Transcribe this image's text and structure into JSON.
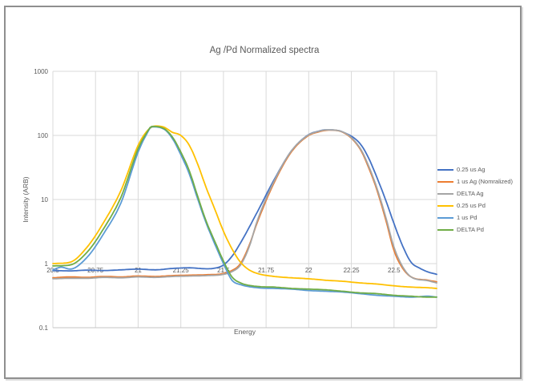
{
  "ui_colors": {
    "text": "#595959",
    "gridline": "#d9d9d9",
    "axis_line": "#c6c6c6",
    "frame_border": "#8f8f8f",
    "frame_shadow": "#dcdcdc",
    "background": "#ffffff"
  },
  "chart_data": {
    "type": "line",
    "title": "Ag /Pd Normalized spectra",
    "xlabel": "Energy",
    "ylabel": "Intensity (ARB)",
    "grid": true,
    "legend_position": "right",
    "x_axis": {
      "min": 20.5,
      "max": 22.75,
      "grid_step": 0.25,
      "tick_labels": [
        "20.5",
        "20.75",
        "21",
        "21.25",
        "21.5",
        "21.75",
        "22",
        "22.25",
        "22.5"
      ],
      "tick_values": [
        20.5,
        20.75,
        21,
        21.25,
        21.5,
        21.75,
        22,
        22.25,
        22.5
      ]
    },
    "y_axis": {
      "scale": "log",
      "min": 0.1,
      "max": 1000,
      "tick_labels": [
        "1000",
        "100",
        "10",
        "1",
        "0.1"
      ],
      "tick_values": [
        1000,
        100,
        10,
        1,
        0.1
      ]
    },
    "series": [
      {
        "name": "0.25 us Ag",
        "color": "#4472C4",
        "points": [
          [
            20.5,
            0.78
          ],
          [
            20.6,
            0.77
          ],
          [
            20.7,
            0.79
          ],
          [
            20.8,
            0.78
          ],
          [
            20.9,
            0.8
          ],
          [
            21.0,
            0.82
          ],
          [
            21.1,
            0.8
          ],
          [
            21.2,
            0.84
          ],
          [
            21.3,
            0.86
          ],
          [
            21.4,
            0.83
          ],
          [
            21.45,
            0.85
          ],
          [
            21.5,
            0.95
          ],
          [
            21.55,
            1.3
          ],
          [
            21.6,
            2.1
          ],
          [
            21.7,
            6.5
          ],
          [
            21.8,
            21
          ],
          [
            21.9,
            58
          ],
          [
            22.0,
            103
          ],
          [
            22.05,
            115
          ],
          [
            22.1,
            122
          ],
          [
            22.15,
            121
          ],
          [
            22.2,
            113
          ],
          [
            22.3,
            75
          ],
          [
            22.35,
            45
          ],
          [
            22.4,
            22
          ],
          [
            22.45,
            10
          ],
          [
            22.5,
            4.2
          ],
          [
            22.55,
            1.9
          ],
          [
            22.6,
            1.05
          ],
          [
            22.65,
            0.85
          ],
          [
            22.7,
            0.74
          ],
          [
            22.75,
            0.68
          ]
        ]
      },
      {
        "name": "1 us Ag (Nomralized)",
        "color": "#ED7D31",
        "points": [
          [
            20.5,
            0.6
          ],
          [
            20.6,
            0.62
          ],
          [
            20.7,
            0.61
          ],
          [
            20.8,
            0.63
          ],
          [
            20.9,
            0.62
          ],
          [
            21.0,
            0.64
          ],
          [
            21.1,
            0.63
          ],
          [
            21.2,
            0.65
          ],
          [
            21.3,
            0.66
          ],
          [
            21.4,
            0.67
          ],
          [
            21.5,
            0.7
          ],
          [
            21.55,
            0.78
          ],
          [
            21.6,
            1.0
          ],
          [
            21.65,
            1.9
          ],
          [
            21.7,
            4.5
          ],
          [
            21.8,
            19
          ],
          [
            21.9,
            56
          ],
          [
            22.0,
            100
          ],
          [
            22.05,
            112
          ],
          [
            22.12,
            121
          ],
          [
            22.2,
            112
          ],
          [
            22.3,
            62
          ],
          [
            22.35,
            32
          ],
          [
            22.4,
            14
          ],
          [
            22.45,
            5
          ],
          [
            22.5,
            1.6
          ],
          [
            22.55,
            0.85
          ],
          [
            22.6,
            0.62
          ],
          [
            22.7,
            0.55
          ],
          [
            22.75,
            0.52
          ]
        ]
      },
      {
        "name": "DELTA Ag",
        "color": "#A5A5A5",
        "points": [
          [
            20.5,
            0.58
          ],
          [
            20.6,
            0.59
          ],
          [
            20.7,
            0.59
          ],
          [
            20.8,
            0.61
          ],
          [
            20.9,
            0.6
          ],
          [
            21.0,
            0.62
          ],
          [
            21.1,
            0.61
          ],
          [
            21.2,
            0.63
          ],
          [
            21.3,
            0.64
          ],
          [
            21.4,
            0.65
          ],
          [
            21.5,
            0.68
          ],
          [
            21.55,
            0.75
          ],
          [
            21.6,
            0.95
          ],
          [
            21.65,
            1.8
          ],
          [
            21.7,
            4.8
          ],
          [
            21.8,
            20
          ],
          [
            21.9,
            58
          ],
          [
            22.0,
            102
          ],
          [
            22.05,
            114
          ],
          [
            22.11,
            122
          ],
          [
            22.2,
            113
          ],
          [
            22.3,
            64
          ],
          [
            22.35,
            34
          ],
          [
            22.4,
            15
          ],
          [
            22.45,
            5.5
          ],
          [
            22.5,
            1.8
          ],
          [
            22.55,
            0.9
          ],
          [
            22.6,
            0.62
          ],
          [
            22.7,
            0.54
          ],
          [
            22.75,
            0.5
          ]
        ]
      },
      {
        "name": "0.25 us Pd",
        "color": "#FFC000",
        "points": [
          [
            20.5,
            1.0
          ],
          [
            20.6,
            1.05
          ],
          [
            20.7,
            1.8
          ],
          [
            20.8,
            4.5
          ],
          [
            20.9,
            14
          ],
          [
            21.0,
            70
          ],
          [
            21.05,
            115
          ],
          [
            21.1,
            140
          ],
          [
            21.15,
            135
          ],
          [
            21.2,
            112
          ],
          [
            21.25,
            100
          ],
          [
            21.3,
            70
          ],
          [
            21.35,
            35
          ],
          [
            21.4,
            15
          ],
          [
            21.45,
            7
          ],
          [
            21.5,
            3.2
          ],
          [
            21.55,
            1.7
          ],
          [
            21.6,
            1.05
          ],
          [
            21.65,
            0.8
          ],
          [
            21.7,
            0.7
          ],
          [
            21.8,
            0.63
          ],
          [
            21.9,
            0.6
          ],
          [
            22.0,
            0.58
          ],
          [
            22.1,
            0.55
          ],
          [
            22.2,
            0.53
          ],
          [
            22.3,
            0.5
          ],
          [
            22.4,
            0.48
          ],
          [
            22.5,
            0.45
          ],
          [
            22.6,
            0.43
          ],
          [
            22.7,
            0.42
          ],
          [
            22.75,
            0.41
          ]
        ]
      },
      {
        "name": "1 us Pd",
        "color": "#5B9BD5",
        "points": [
          [
            20.5,
            0.8
          ],
          [
            20.55,
            0.88
          ],
          [
            20.6,
            0.82
          ],
          [
            20.7,
            1.25
          ],
          [
            20.8,
            3.0
          ],
          [
            20.9,
            9
          ],
          [
            21.0,
            55
          ],
          [
            21.05,
            105
          ],
          [
            21.08,
            136
          ],
          [
            21.15,
            126
          ],
          [
            21.2,
            90
          ],
          [
            21.25,
            50
          ],
          [
            21.3,
            25
          ],
          [
            21.35,
            10
          ],
          [
            21.4,
            4.2
          ],
          [
            21.45,
            2.0
          ],
          [
            21.5,
            1.0
          ],
          [
            21.55,
            0.55
          ],
          [
            21.6,
            0.47
          ],
          [
            21.7,
            0.42
          ],
          [
            21.8,
            0.41
          ],
          [
            21.9,
            0.4
          ],
          [
            22.0,
            0.38
          ],
          [
            22.1,
            0.37
          ],
          [
            22.2,
            0.36
          ],
          [
            22.3,
            0.34
          ],
          [
            22.4,
            0.32
          ],
          [
            22.5,
            0.31
          ],
          [
            22.6,
            0.3
          ],
          [
            22.7,
            0.31
          ],
          [
            22.75,
            0.3
          ]
        ]
      },
      {
        "name": "DELTA Pd",
        "color": "#70AD47",
        "points": [
          [
            20.5,
            0.92
          ],
          [
            20.6,
            0.95
          ],
          [
            20.7,
            1.5
          ],
          [
            20.8,
            3.6
          ],
          [
            20.9,
            11
          ],
          [
            21.0,
            62
          ],
          [
            21.05,
            110
          ],
          [
            21.08,
            138
          ],
          [
            21.15,
            128
          ],
          [
            21.2,
            95
          ],
          [
            21.25,
            55
          ],
          [
            21.3,
            28
          ],
          [
            21.35,
            11
          ],
          [
            21.4,
            4.5
          ],
          [
            21.45,
            2.2
          ],
          [
            21.5,
            1.1
          ],
          [
            21.55,
            0.62
          ],
          [
            21.6,
            0.5
          ],
          [
            21.7,
            0.44
          ],
          [
            21.8,
            0.43
          ],
          [
            21.9,
            0.41
          ],
          [
            22.0,
            0.4
          ],
          [
            22.1,
            0.39
          ],
          [
            22.2,
            0.37
          ],
          [
            22.3,
            0.35
          ],
          [
            22.4,
            0.34
          ],
          [
            22.5,
            0.32
          ],
          [
            22.6,
            0.31
          ],
          [
            22.7,
            0.3
          ],
          [
            22.75,
            0.3
          ]
        ]
      }
    ]
  }
}
